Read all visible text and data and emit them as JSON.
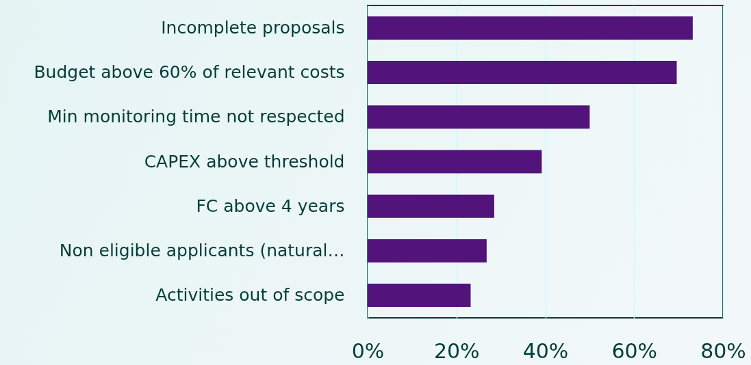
{
  "chart_data": {
    "type": "bar",
    "orientation": "horizontal",
    "categories": [
      "Incomplete proposals",
      "Budget above 60% of relevant costs",
      "Min monitoring time not respected",
      "CAPEX above threshold",
      "FC above 4 years",
      "Non eligible applicants (natural…",
      "Activities out of scope"
    ],
    "values": [
      73.2,
      69.6,
      50.0,
      39.2,
      28.5,
      26.8,
      23.2
    ],
    "color": "#52137a",
    "xlim": [
      0,
      80
    ],
    "xticks": [
      {
        "value": 0,
        "label": "0%"
      },
      {
        "value": 20,
        "label": "20%"
      },
      {
        "value": 40,
        "label": "40%"
      },
      {
        "value": 60,
        "label": "60%"
      },
      {
        "value": 80,
        "label": "80%"
      }
    ],
    "grid": "x"
  }
}
